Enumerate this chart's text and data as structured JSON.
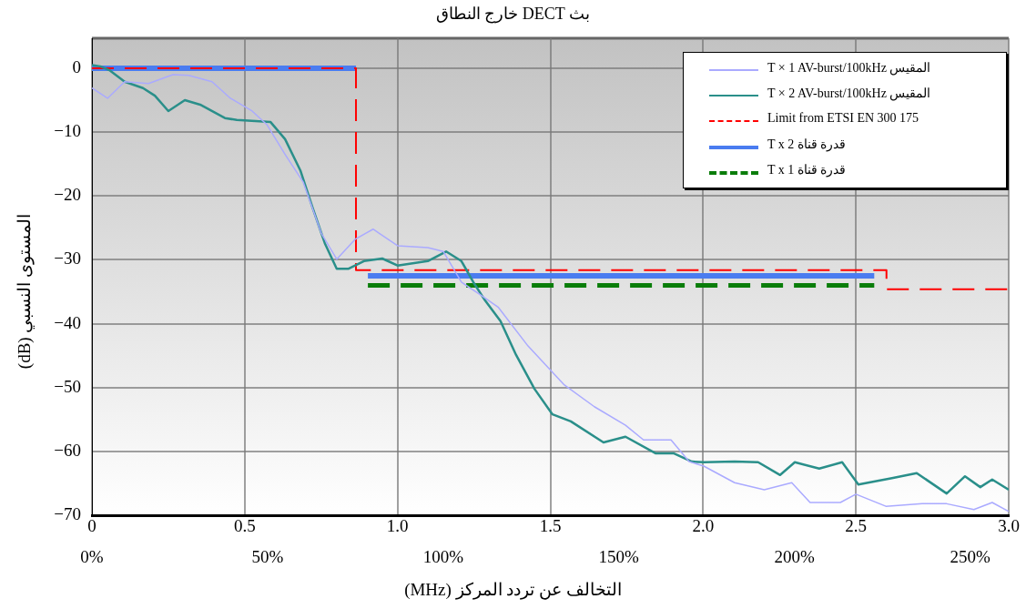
{
  "chart_data": {
    "type": "line",
    "title": "بث DECT خارج النطاق",
    "xlabel": "التخالف عن تردد المركز (MHz)",
    "ylabel": "المستوى النسبي (dB)",
    "xlim": [
      0,
      3
    ],
    "xticks": [
      0,
      0.5,
      {
        "value": 1,
        "label": "1.0"
      },
      1.5,
      {
        "value": 2,
        "label": "2.0"
      },
      2.5,
      {
        "value": 3,
        "label": "3.0"
      }
    ],
    "x2lim": [
      0,
      261
    ],
    "x2ticks": [
      {
        "value": 0,
        "label": "0%"
      },
      {
        "value": 50,
        "label": "50%"
      },
      {
        "value": 100,
        "label": "100%"
      },
      {
        "value": 150,
        "label": "150%"
      },
      {
        "value": 200,
        "label": "200%"
      },
      {
        "value": 250,
        "label": "250%"
      }
    ],
    "ylim": [
      -70,
      4.7
    ],
    "yticks": [
      {
        "value": -70,
        "label": "−70"
      },
      {
        "value": -60,
        "label": "−60"
      },
      {
        "value": -50,
        "label": "−50"
      },
      {
        "value": -40,
        "label": "−40"
      },
      {
        "value": -30,
        "label": "−30"
      },
      {
        "value": -20,
        "label": "−20"
      },
      {
        "value": -10,
        "label": "−10"
      },
      0
    ],
    "grid": true,
    "legend": "top right",
    "marker": "none",
    "series": [
      {
        "name": "T × 1 AV-burst/100kHz المقيس",
        "color": "#aaaaff",
        "line_style": "solid",
        "x": [
          0,
          0.051,
          0.107,
          0.185,
          0.265,
          0.316,
          0.393,
          0.453,
          0.524,
          0.572,
          0.632,
          0.691,
          0.751,
          0.801,
          0.861,
          0.92,
          1.0,
          1.099,
          1.15,
          1.209,
          1.269,
          1.329,
          1.427,
          1.546,
          1.644,
          1.746,
          1.805,
          1.895,
          1.954,
          2.002,
          2.103,
          2.2,
          2.29,
          2.35,
          2.449,
          2.5,
          2.598,
          2.717,
          2.797,
          2.886,
          2.946,
          3.0
        ],
        "values": [
          -3.1,
          -4.7,
          -2.1,
          -2.4,
          -1.0,
          -1.1,
          -2.1,
          -4.7,
          -6.7,
          -8.8,
          -13.5,
          -17.8,
          -25.9,
          -29.9,
          -26.8,
          -25.2,
          -27.8,
          -28.1,
          -28.7,
          -33.5,
          -35.4,
          -37.4,
          -43.5,
          -49.6,
          -53.0,
          -55.9,
          -58.2,
          -58.2,
          -61.6,
          -62.3,
          -64.9,
          -66.0,
          -64.9,
          -68.0,
          -68.0,
          -66.7,
          -68.6,
          -68.2,
          -68.2,
          -69.1,
          -68.0,
          -69.4
        ]
      },
      {
        "name": "T × 2 AV-burst/100kHz المقيس",
        "color": "#2a8f8a",
        "line_style": "solid",
        "x": [
          0,
          0.027,
          0.057,
          0.107,
          0.167,
          0.206,
          0.25,
          0.304,
          0.354,
          0.435,
          0.474,
          0.584,
          0.632,
          0.682,
          0.721,
          0.762,
          0.801,
          0.84,
          0.89,
          0.95,
          1.0,
          1.099,
          1.159,
          1.209,
          1.248,
          1.287,
          1.337,
          1.388,
          1.448,
          1.507,
          1.567,
          1.674,
          1.746,
          1.844,
          1.903,
          1.963,
          2.002,
          2.103,
          2.18,
          2.252,
          2.3,
          2.38,
          2.455,
          2.508,
          2.618,
          2.699,
          2.797,
          2.857,
          2.907,
          2.946,
          3.0
        ],
        "values": [
          0.5,
          0.3,
          -0.3,
          -2.1,
          -3.1,
          -4.3,
          -6.7,
          -5.0,
          -5.7,
          -7.8,
          -8.1,
          -8.4,
          -11.1,
          -16.0,
          -21.7,
          -27.4,
          -31.4,
          -31.4,
          -30.2,
          -29.8,
          -30.9,
          -30.2,
          -28.7,
          -30.2,
          -33.5,
          -36.4,
          -39.6,
          -44.9,
          -50.2,
          -54.2,
          -55.3,
          -58.6,
          -57.7,
          -60.3,
          -60.3,
          -61.6,
          -61.7,
          -61.6,
          -61.7,
          -63.7,
          -61.7,
          -62.7,
          -61.7,
          -65.2,
          -64.2,
          -63.4,
          -66.6,
          -63.9,
          -65.6,
          -64.4,
          -66.0
        ]
      },
      {
        "name": "Limit from ETSI EN 300 175",
        "color": "#ff0000",
        "line_style": "dashed",
        "x": [
          0,
          0.864,
          0.864,
          2.6,
          2.6,
          3.0
        ],
        "values": [
          0,
          0,
          -31.6,
          -31.6,
          -34.6,
          -34.6
        ]
      },
      {
        "name": "T x 2 قدرة قناة",
        "color": "#4a7cf0",
        "line_style": "solid",
        "x": [
          0,
          0.864,
          0.88,
          0.903,
          2.56
        ],
        "values": [
          0,
          0,
          null,
          -32.5,
          -32.5
        ]
      },
      {
        "name": "T x 1 قدرة قناة",
        "color": "#0a7d0a",
        "line_style": "dashed",
        "x": [
          0,
          0.864,
          0.88,
          0.903,
          2.56
        ],
        "values": [
          0,
          0,
          null,
          -34.0,
          -34.0
        ]
      }
    ]
  }
}
